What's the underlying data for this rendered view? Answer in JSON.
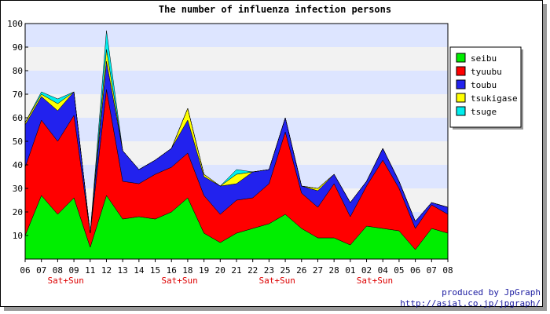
{
  "chart_data": {
    "type": "area",
    "stacked": true,
    "title": "The number of influenza infection persons",
    "categories": [
      "06",
      "07",
      "08",
      "09",
      "11",
      "12",
      "13",
      "14",
      "15",
      "16",
      "18",
      "19",
      "20",
      "21",
      "22",
      "23",
      "25",
      "26",
      "27",
      "28",
      "01",
      "02",
      "04",
      "05",
      "06",
      "07",
      "08"
    ],
    "weekend_marks": [
      {
        "category_index": 2,
        "label": "Sat+Sun"
      },
      {
        "category_index": 9,
        "label": "Sat+Sun"
      },
      {
        "category_index": 15,
        "label": "Sat+Sun"
      },
      {
        "category_index": 21,
        "label": "Sat+Sun"
      }
    ],
    "series": [
      {
        "name": "seibu",
        "color": "#00ee00",
        "values": [
          10,
          27,
          19,
          26,
          5,
          27,
          17,
          18,
          17,
          20,
          26,
          11,
          7,
          11,
          13,
          15,
          19,
          13,
          9,
          9,
          6,
          14,
          13,
          12,
          4,
          13,
          11
        ]
      },
      {
        "name": "tyuubu",
        "color": "#ff0000",
        "values": [
          29,
          32,
          31,
          35,
          6,
          45,
          16,
          14,
          19,
          19,
          19,
          16,
          12,
          14,
          13,
          17,
          35,
          15,
          13,
          23,
          12,
          17,
          29,
          18,
          9,
          10,
          8
        ]
      },
      {
        "name": "toubu",
        "color": "#2222ee",
        "values": [
          18,
          10,
          13,
          10,
          0,
          12,
          13,
          6,
          6,
          8,
          14,
          8,
          12,
          7,
          11,
          6,
          6,
          3,
          7,
          4,
          6,
          2,
          5,
          3,
          3,
          1,
          3
        ]
      },
      {
        "name": "tsukigase",
        "color": "#ffff00",
        "values": [
          1,
          1,
          3,
          0,
          0,
          5,
          0,
          0,
          0,
          0,
          5,
          1,
          0,
          4,
          0,
          0,
          0,
          0,
          1,
          0,
          0,
          0,
          0,
          0,
          0,
          0,
          0
        ]
      },
      {
        "name": "tsuge",
        "color": "#00eeee",
        "values": [
          0,
          1,
          2,
          0,
          0,
          8,
          0,
          0,
          0,
          0,
          0,
          0,
          0,
          2,
          0,
          0,
          0,
          0,
          0,
          0,
          0,
          0,
          0,
          0,
          0,
          0,
          0
        ]
      }
    ],
    "ylim": [
      0,
      100
    ],
    "yticks": [
      10,
      20,
      30,
      40,
      50,
      60,
      70,
      80,
      90,
      100
    ],
    "grid": "horizontal bands",
    "band_colors": [
      "#f2f2f2",
      "#dde5ff"
    ],
    "legend_position": "right"
  },
  "footer": {
    "credit_line1": "produced by JpGraph",
    "credit_line2": "http://asial.co.jp/jpgraph/",
    "credit_color": "#1a1aa0"
  }
}
